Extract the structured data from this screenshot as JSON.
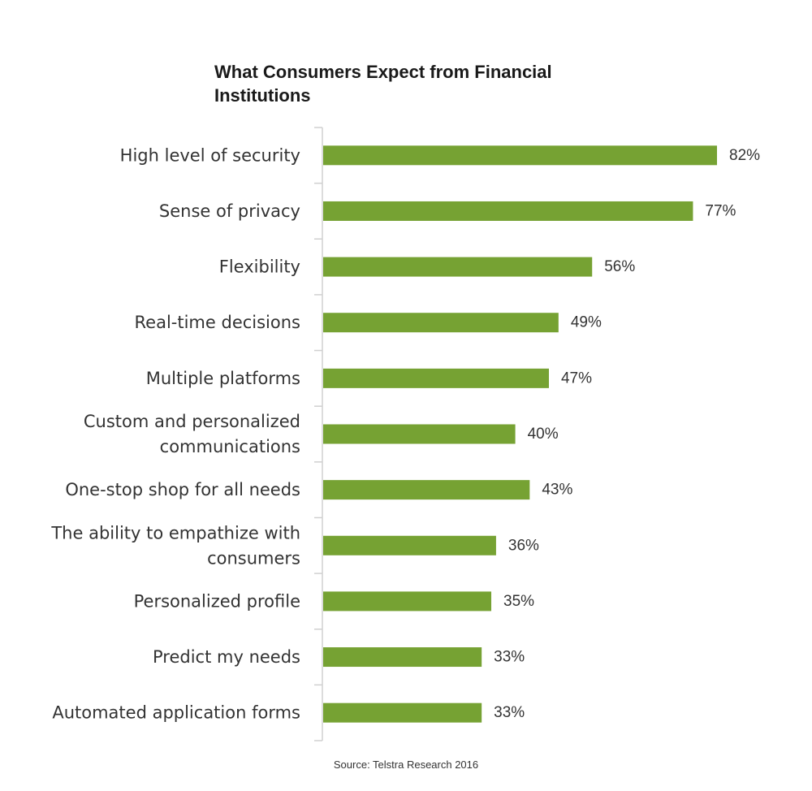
{
  "colors": {
    "bar": "#76a233",
    "axis": "#d0d0d0",
    "text": "#333333"
  },
  "chart_data": {
    "type": "bar",
    "orientation": "horizontal",
    "title": "What Consumers Expect from Financial Institutions",
    "source": "Source: Telstra Research 2016",
    "categories": [
      "High level of security",
      "Sense of privacy",
      "Flexibility",
      "Real-time decisions",
      "Multiple platforms",
      "Custom and personalized communications",
      "One-stop shop for all needs",
      "The ability to empathize with consumers",
      "Personalized profile",
      "Predict my needs",
      "Automated application forms"
    ],
    "category_lines": [
      [
        "High level of security"
      ],
      [
        "Sense of privacy"
      ],
      [
        "Flexibility"
      ],
      [
        "Real-time decisions"
      ],
      [
        "Multiple platforms"
      ],
      [
        "Custom and personalized",
        "communications"
      ],
      [
        "One-stop shop for all needs"
      ],
      [
        "The ability to empathize with",
        "consumers"
      ],
      [
        "Personalized profile"
      ],
      [
        "Predict my needs"
      ],
      [
        "Automated application forms"
      ]
    ],
    "values": [
      82,
      77,
      56,
      49,
      47,
      40,
      43,
      36,
      35,
      33,
      33
    ],
    "labels": [
      "82%",
      "77%",
      "56%",
      "49%",
      "47%",
      "40%",
      "43%",
      "36%",
      "35%",
      "33%",
      "33%"
    ],
    "unit": "%",
    "xlim": [
      0,
      100
    ],
    "grid": false,
    "legend": "none"
  }
}
